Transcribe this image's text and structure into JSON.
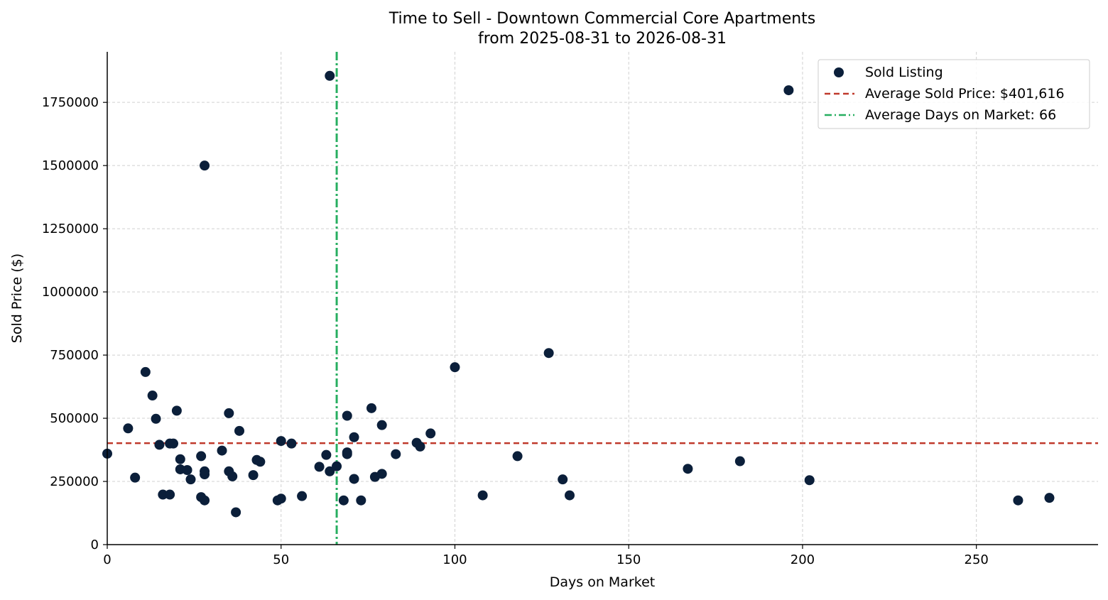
{
  "chart_data": {
    "type": "scatter",
    "title": "Time to Sell - Downtown Commercial Core Apartments",
    "subtitle": "from 2025-08-31 to 2026-08-31",
    "xlabel": "Days on Market",
    "ylabel": "Sold Price ($)",
    "xlim": [
      0,
      285
    ],
    "ylim": [
      0,
      1950000
    ],
    "x_ticks": [
      0,
      50,
      100,
      150,
      200,
      250
    ],
    "y_ticks": [
      0,
      250000,
      500000,
      750000,
      1000000,
      1250000,
      1500000,
      1750000
    ],
    "grid": true,
    "legend_position": "top-right",
    "colors": {
      "points": "#0b1f3a",
      "avg_price_line": "#c0392b",
      "avg_days_line": "#27ae60"
    },
    "series": [
      {
        "name": "Sold Listing",
        "points": [
          [
            0,
            360000
          ],
          [
            6,
            460000
          ],
          [
            8,
            265000
          ],
          [
            11,
            683000
          ],
          [
            13,
            590000
          ],
          [
            14,
            498000
          ],
          [
            15,
            395000
          ],
          [
            16,
            198000
          ],
          [
            18,
            198000
          ],
          [
            18,
            400000
          ],
          [
            19,
            400000
          ],
          [
            20,
            530000
          ],
          [
            21,
            338000
          ],
          [
            21,
            298000
          ],
          [
            23,
            295000
          ],
          [
            24,
            258000
          ],
          [
            27,
            350000
          ],
          [
            27,
            188000
          ],
          [
            28,
            290000
          ],
          [
            28,
            278000
          ],
          [
            28,
            175000
          ],
          [
            28,
            1500000
          ],
          [
            33,
            372000
          ],
          [
            35,
            520000
          ],
          [
            35,
            290000
          ],
          [
            36,
            270000
          ],
          [
            37,
            128000
          ],
          [
            38,
            450000
          ],
          [
            42,
            275000
          ],
          [
            43,
            335000
          ],
          [
            44,
            328000
          ],
          [
            49,
            175000
          ],
          [
            50,
            410000
          ],
          [
            50,
            182000
          ],
          [
            53,
            400000
          ],
          [
            56,
            192000
          ],
          [
            61,
            308000
          ],
          [
            63,
            355000
          ],
          [
            64,
            290000
          ],
          [
            64,
            1855000
          ],
          [
            66,
            310000
          ],
          [
            68,
            175000
          ],
          [
            69,
            510000
          ],
          [
            69,
            365000
          ],
          [
            69,
            358000
          ],
          [
            71,
            425000
          ],
          [
            71,
            260000
          ],
          [
            73,
            175000
          ],
          [
            76,
            540000
          ],
          [
            77,
            268000
          ],
          [
            79,
            473000
          ],
          [
            79,
            280000
          ],
          [
            83,
            358000
          ],
          [
            89,
            403000
          ],
          [
            90,
            388000
          ],
          [
            93,
            440000
          ],
          [
            100,
            702000
          ],
          [
            108,
            195000
          ],
          [
            118,
            350000
          ],
          [
            127,
            758000
          ],
          [
            131,
            258000
          ],
          [
            133,
            195000
          ],
          [
            167,
            300000
          ],
          [
            182,
            330000
          ],
          [
            196,
            1798000
          ],
          [
            202,
            255000
          ],
          [
            262,
            175000
          ],
          [
            271,
            185000
          ]
        ]
      }
    ],
    "reference_lines": {
      "avg_price": {
        "label": "Average Sold Price: $401,616",
        "value": 401616
      },
      "avg_days": {
        "label": "Average Days on Market: 66",
        "value": 66
      }
    }
  }
}
